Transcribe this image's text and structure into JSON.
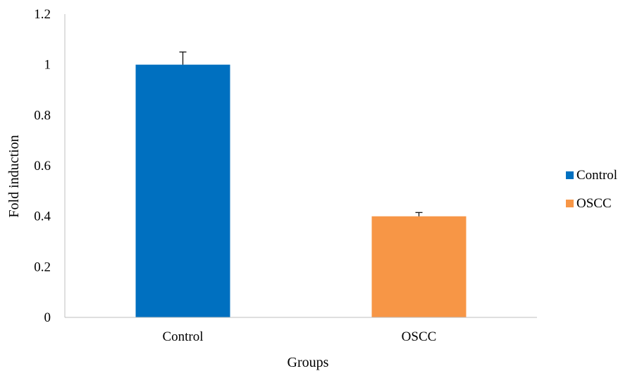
{
  "chart_data": {
    "type": "bar",
    "xlabel": "Groups",
    "ylabel": "Fold induction",
    "ylim": [
      0,
      1.2
    ],
    "ytick_step": 0.2,
    "yticks": [
      "0",
      "0.2",
      "0.4",
      "0.6",
      "0.8",
      "1",
      "1.2"
    ],
    "categories": [
      "Control",
      "OSCC"
    ],
    "values": [
      1.0,
      0.4
    ],
    "errors": [
      0.05,
      0.015
    ],
    "colors": [
      "#0070C0",
      "#F79646"
    ],
    "legend": {
      "placement": "right",
      "entries": [
        {
          "label": "Control",
          "color": "#0070C0"
        },
        {
          "label": "OSCC",
          "color": "#F79646"
        }
      ]
    },
    "grid": false
  }
}
